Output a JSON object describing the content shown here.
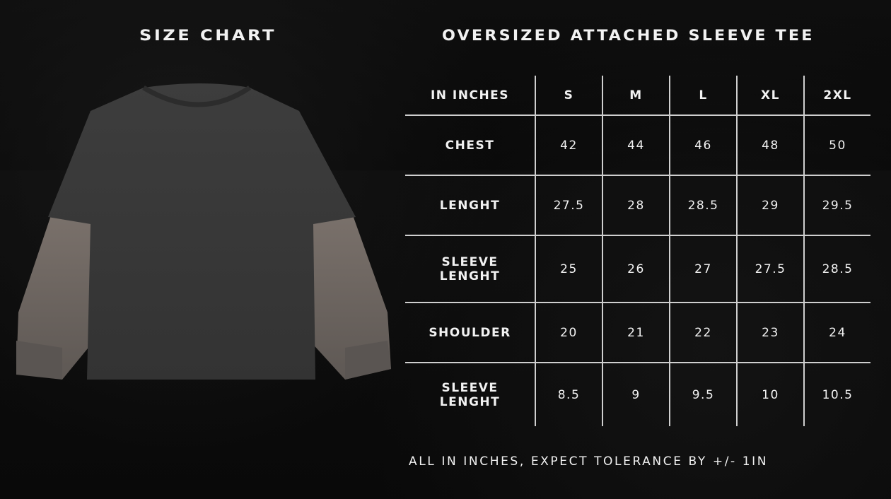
{
  "title_left": "SIZE CHART",
  "title_right": "OVERSIZED ATTACHED SLEEVE TEE",
  "colors": {
    "background": "#0a0a0a",
    "text": "#f2f2f2",
    "grid": "#cfcfcf",
    "shirt_body": "#3a3a3a",
    "sleeve": "#6e6660"
  },
  "table": {
    "header": [
      "IN INCHES",
      "S",
      "M",
      "L",
      "XL",
      "2XL"
    ],
    "rows": [
      {
        "label": [
          "CHEST"
        ],
        "values": [
          "42",
          "44",
          "46",
          "48",
          "50"
        ]
      },
      {
        "label": [
          "LENGHT"
        ],
        "values": [
          "27.5",
          "28",
          "28.5",
          "29",
          "29.5"
        ]
      },
      {
        "label": [
          "SLEEVE",
          "LENGHT"
        ],
        "values": [
          "25",
          "26",
          "27",
          "27.5",
          "28.5"
        ]
      },
      {
        "label": [
          "SHOULDER"
        ],
        "values": [
          "20",
          "21",
          "22",
          "23",
          "24"
        ]
      },
      {
        "label": [
          "SLEEVE",
          "LENGHT"
        ],
        "values": [
          "8.5",
          "9",
          "9.5",
          "10",
          "10.5"
        ]
      }
    ]
  },
  "footnote": "ALL IN INCHES, EXPECT TOLERANCE BY +/- 1IN"
}
